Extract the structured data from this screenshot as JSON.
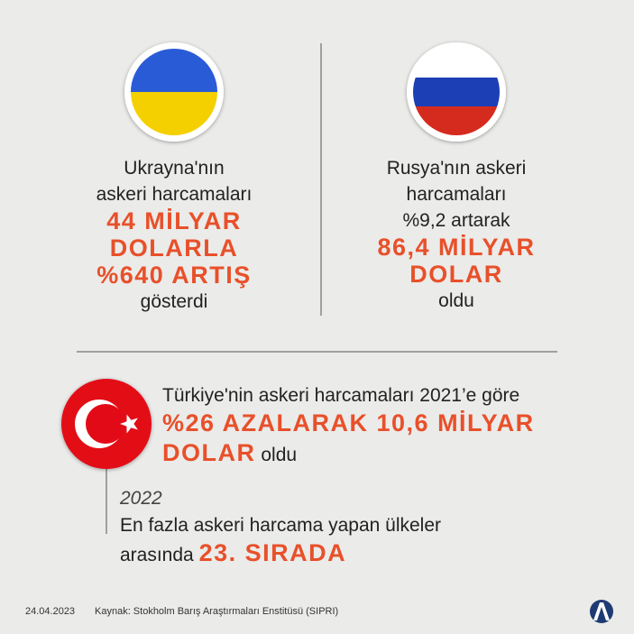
{
  "ukraine": {
    "lines": [
      "Ukrayna'nın",
      "askeri harcamaları"
    ],
    "highlight": [
      "44 MİLYAR",
      "DOLARLA",
      "%640 ARTIŞ"
    ],
    "closing": "gösterdi"
  },
  "russia": {
    "lines": [
      "Rusya'nın askeri",
      "harcamaları",
      "%9,2 artarak"
    ],
    "highlight": [
      "86,4 MİLYAR",
      "DOLAR"
    ],
    "closing": "oldu"
  },
  "turkey": {
    "intro": "Türkiye'nin askeri harcamaları 2021’e göre",
    "highlight": [
      "%26 AZALARAK 10,6 MİLYAR",
      "DOLAR"
    ],
    "closing": "oldu",
    "year": "2022",
    "rank_intro": "En fazla askeri harcama yapan ülkeler",
    "rank_prefix": "arasında",
    "rank": "23. SIRADA"
  },
  "footer": {
    "date": "24.04.2023",
    "source": "Kaynak: Stokholm Barış Araştırmaları Enstitüsü (SIPRI)"
  }
}
